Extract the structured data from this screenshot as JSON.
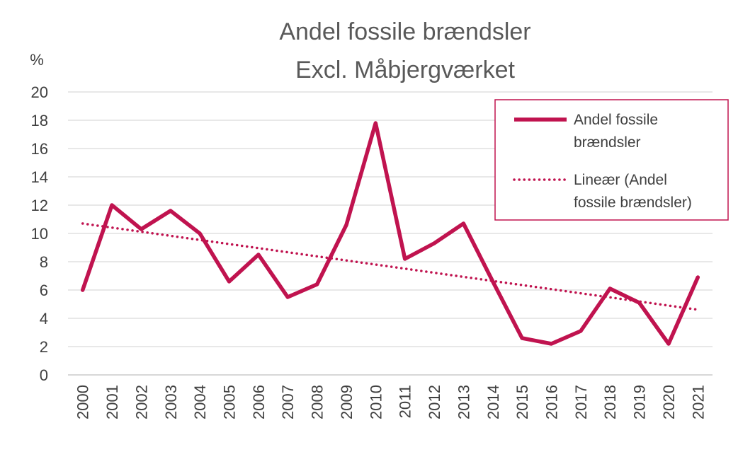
{
  "chart_data": {
    "type": "line",
    "title": "Andel fossile brændsler",
    "subtitle": "Excl. Måbjergværket",
    "ylabel": "%",
    "xlabel": "",
    "ylim": [
      0,
      20
    ],
    "yticks": [
      0,
      2,
      4,
      6,
      8,
      10,
      12,
      14,
      16,
      18,
      20
    ],
    "grid": true,
    "legend_position": "top-right",
    "categories": [
      "2000",
      "2001",
      "2002",
      "2003",
      "2004",
      "2005",
      "2006",
      "2007",
      "2008",
      "2009",
      "2010",
      "2011",
      "2012",
      "2013",
      "2014",
      "2015",
      "2016",
      "2017",
      "2018",
      "2019",
      "2020",
      "2021"
    ],
    "series": [
      {
        "name": "Andel fossile brændsler",
        "style": "solid",
        "color": "#C0134F",
        "values": [
          6.0,
          12.0,
          10.3,
          11.6,
          10.0,
          6.6,
          8.5,
          5.5,
          6.4,
          10.6,
          17.8,
          8.2,
          9.3,
          10.7,
          6.6,
          2.6,
          2.2,
          3.1,
          6.1,
          5.1,
          2.2,
          6.9
        ]
      },
      {
        "name": "Lineær (Andel fossile brændsler)",
        "style": "dotted",
        "color": "#C0134F",
        "values": [
          10.7,
          10.41,
          10.12,
          9.83,
          9.54,
          9.25,
          8.96,
          8.67,
          8.38,
          8.09,
          7.8,
          7.51,
          7.22,
          6.93,
          6.64,
          6.35,
          6.06,
          5.77,
          5.48,
          5.19,
          4.9,
          4.61
        ]
      }
    ],
    "legend": {
      "entries": [
        {
          "lines": [
            "Andel fossile",
            "brændsler"
          ],
          "style": "solid"
        },
        {
          "lines": [
            "Lineær (Andel",
            "fossile brændsler)"
          ],
          "style": "dotted"
        }
      ]
    }
  },
  "colors": {
    "accent": "#C0134F",
    "grid": "#D9D9D9",
    "text": "#404040",
    "title": "#595959"
  }
}
